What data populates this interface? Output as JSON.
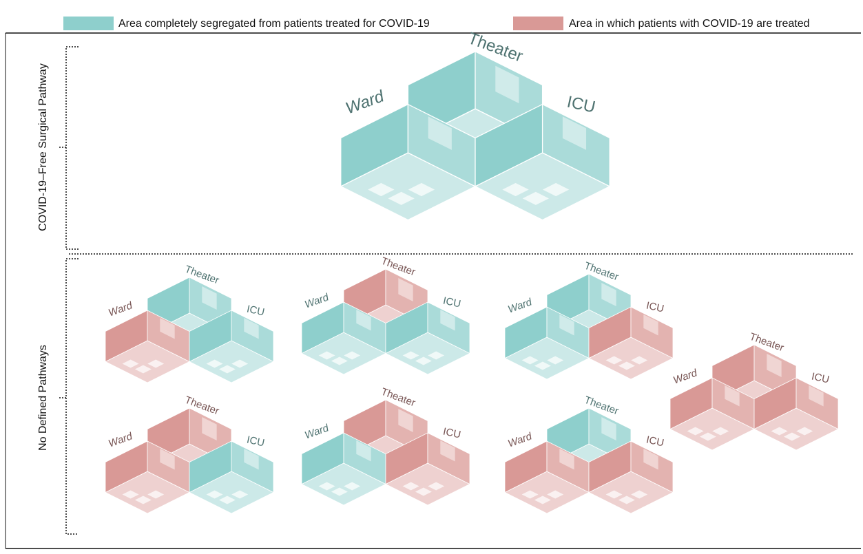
{
  "legend": [
    {
      "label": "Area completely segregated from patients treated for COVID-19",
      "color": "#8ecfcc"
    },
    {
      "label": "Area in which patients with COVID-19 are treated",
      "color": "#d99996"
    }
  ],
  "rows": [
    {
      "label": "COVID-19–Free Surgical Pathway",
      "blocks": [
        {
          "rooms": [
            {
              "label": "Theater",
              "color": "#8ecfcc"
            },
            {
              "label": "Ward",
              "color": "#8ecfcc"
            },
            {
              "label": "ICU",
              "color": "#8ecfcc"
            }
          ]
        }
      ]
    },
    {
      "label": "No Defined Pathways",
      "blocks": [
        {
          "rooms": [
            {
              "label": "Theater",
              "color": "#8ecfcc"
            },
            {
              "label": "Ward",
              "color": "#d99996"
            },
            {
              "label": "ICU",
              "color": "#8ecfcc"
            }
          ]
        },
        {
          "rooms": [
            {
              "label": "Theater",
              "color": "#d99996"
            },
            {
              "label": "Ward",
              "color": "#8ecfcc"
            },
            {
              "label": "ICU",
              "color": "#8ecfcc"
            }
          ]
        },
        {
          "rooms": [
            {
              "label": "Theater",
              "color": "#8ecfcc"
            },
            {
              "label": "Ward",
              "color": "#8ecfcc"
            },
            {
              "label": "ICU",
              "color": "#d99996"
            }
          ]
        },
        {
          "rooms": [
            {
              "label": "Theater",
              "color": "#d99996"
            },
            {
              "label": "Ward",
              "color": "#d99996"
            },
            {
              "label": "ICU",
              "color": "#d99996"
            }
          ]
        },
        {
          "rooms": [
            {
              "label": "Theater",
              "color": "#d99996"
            },
            {
              "label": "Ward",
              "color": "#d99996"
            },
            {
              "label": "ICU",
              "color": "#8ecfcc"
            }
          ]
        },
        {
          "rooms": [
            {
              "label": "Theater",
              "color": "#d99996"
            },
            {
              "label": "Ward",
              "color": "#8ecfcc"
            },
            {
              "label": "ICU",
              "color": "#d99996"
            }
          ]
        },
        {
          "rooms": [
            {
              "label": "Theater",
              "color": "#8ecfcc"
            },
            {
              "label": "Ward",
              "color": "#d99996"
            },
            {
              "label": "ICU",
              "color": "#d99996"
            }
          ]
        }
      ]
    }
  ]
}
